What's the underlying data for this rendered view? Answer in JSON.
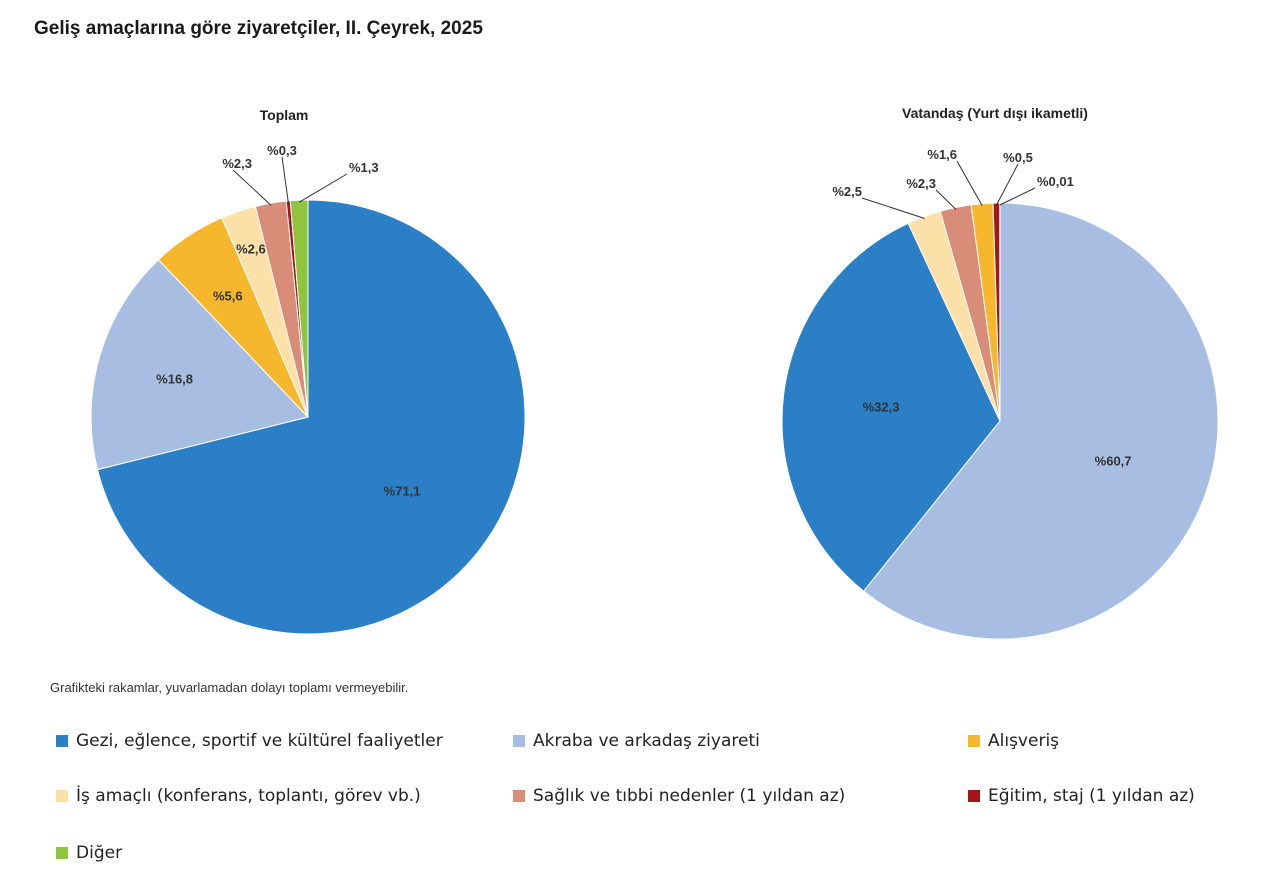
{
  "title": "Geliş amaçlarına göre ziyaretçiler, II. Çeyrek, 2025",
  "footnote": "Grafikteki rakamlar, yuvarlamadan dolayı toplamı vermeyebilir.",
  "categories": [
    "Gezi, eğlence, sportif ve kültürel faaliyetler",
    "Akraba ve arkadaş ziyareti",
    "Alışveriş",
    "İş amaçlı (konferans, toplantı, görev vb.)",
    "Sağlık ve tıbbi nedenler (1 yıldan az)",
    "Eğitim, staj (1 yıldan az)",
    "Diğer"
  ],
  "colors": [
    "#2b7fc6",
    "#a7bee2",
    "#f6b72c",
    "#fbe1a7",
    "#d98d78",
    "#a4161b",
    "#8fc43c"
  ],
  "chart_data": [
    {
      "type": "pie",
      "title": "Toplam",
      "series": [
        {
          "name": "Gezi, eğlence, sportif ve kültürel faaliyetler",
          "value": 71.1,
          "label": "%71,1"
        },
        {
          "name": "Akraba ve arkadaş ziyareti",
          "value": 16.8,
          "label": "%16,8"
        },
        {
          "name": "Alışveriş",
          "value": 5.6,
          "label": "%5,6"
        },
        {
          "name": "İş amaçlı (konferans, toplantı, görev vb.)",
          "value": 2.6,
          "label": "%2,6"
        },
        {
          "name": "Sağlık ve tıbbi nedenler (1 yıldan az)",
          "value": 2.3,
          "label": "%2,3"
        },
        {
          "name": "Eğitim, staj (1 yıldan az)",
          "value": 0.3,
          "label": "%0,3"
        },
        {
          "name": "Diğer",
          "value": 1.3,
          "label": "%1,3"
        }
      ]
    },
    {
      "type": "pie",
      "title": "Vatandaş (Yurt dışı ikametli)",
      "series": [
        {
          "name": "Akraba ve arkadaş ziyareti",
          "value": 60.7,
          "label": "%60,7"
        },
        {
          "name": "Gezi, eğlence, sportif ve kültürel faaliyetler",
          "value": 32.3,
          "label": "%32,3"
        },
        {
          "name": "İş amaçlı (konferans, toplantı, görev vb.)",
          "value": 2.5,
          "label": "%2,5"
        },
        {
          "name": "Sağlık ve tıbbi nedenler (1 yıldan az)",
          "value": 2.3,
          "label": "%2,3"
        },
        {
          "name": "Alışveriş",
          "value": 1.6,
          "label": "%1,6"
        },
        {
          "name": "Eğitim, staj (1 yıldan az)",
          "value": 0.5,
          "label": "%0,5"
        },
        {
          "name": "Diğer",
          "value": 0.01,
          "label": "%0,01"
        }
      ]
    }
  ]
}
